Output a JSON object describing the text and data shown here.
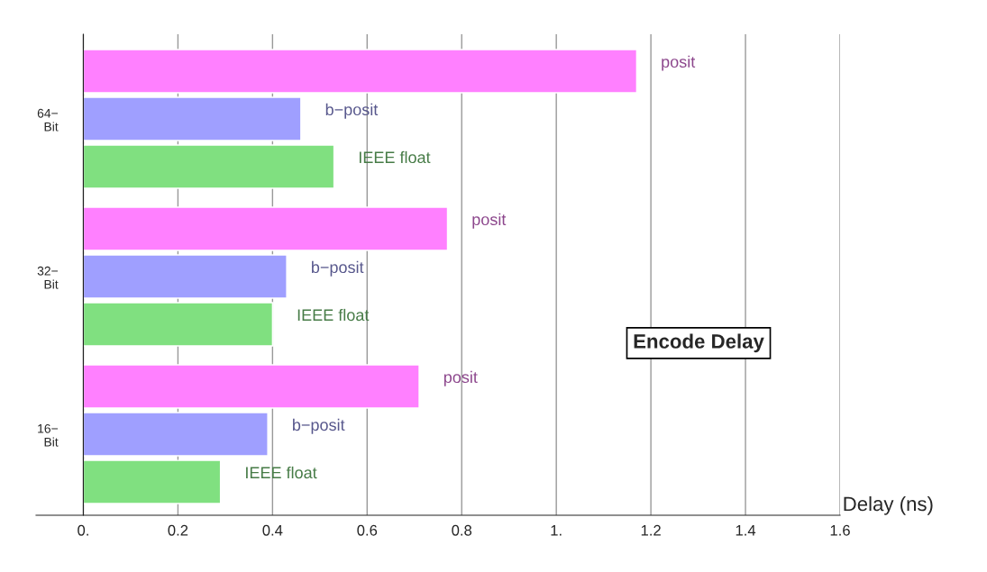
{
  "chart_data": {
    "type": "bar",
    "orientation": "horizontal",
    "title": "Encode Delay",
    "xlabel": "Delay (ns)",
    "categories": [
      "64−\nBit",
      "32−\nBit",
      "16−\nBit"
    ],
    "series": [
      {
        "name": "posit",
        "color": "#ff80ff",
        "values": [
          1.17,
          0.77,
          0.71
        ]
      },
      {
        "name": "b−posit",
        "color": "#9f9fff",
        "values": [
          0.46,
          0.43,
          0.39
        ]
      },
      {
        "name": "IEEE float",
        "color": "#80e080",
        "values": [
          0.53,
          0.4,
          0.29
        ]
      }
    ],
    "xlim": [
      -0.1,
      1.6
    ],
    "xticks": [
      {
        "value": 0,
        "label": "0."
      },
      0.2,
      0.4,
      0.6,
      0.8,
      {
        "value": 1,
        "label": "1."
      },
      1.2,
      1.4,
      1.6
    ],
    "grid": "x",
    "legend": false
  }
}
